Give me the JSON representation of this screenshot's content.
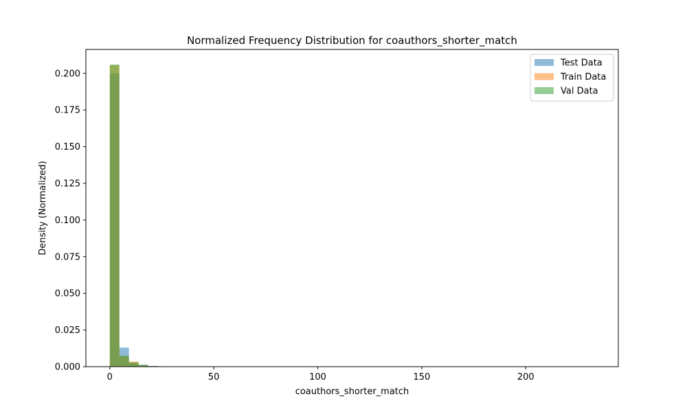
{
  "chart_data": {
    "type": "bar",
    "title": "Normalized Frequency Distribution for coauthors_shorter_match",
    "xlabel": "coauthors_shorter_match",
    "ylabel": "Density (Normalized)",
    "xlim": [
      -11.5,
      244.5
    ],
    "ylim": [
      0,
      0.2163
    ],
    "xticks": [
      0,
      50,
      100,
      150,
      200
    ],
    "yticks": [
      0.0,
      0.025,
      0.05,
      0.075,
      0.1,
      0.125,
      0.15,
      0.175,
      0.2
    ],
    "ytick_labels": [
      "0.000",
      "0.025",
      "0.050",
      "0.075",
      "0.100",
      "0.125",
      "0.150",
      "0.175",
      "0.200"
    ],
    "bin_edges": [
      0,
      4.6,
      9.2,
      13.8,
      18.4,
      23.0,
      27.6
    ],
    "legend_position": "top-right",
    "grid": false,
    "series": [
      {
        "name": "Test Data",
        "color": "#1f77b4",
        "alpha": 0.5,
        "values": [
          0.2,
          0.013,
          0.0025,
          0.0013,
          0.0005,
          0.0002
        ]
      },
      {
        "name": "Train Data",
        "color": "#ff7f0e",
        "alpha": 0.5,
        "values": [
          0.2055,
          0.007,
          0.0035,
          0.001,
          0.0004,
          0.0002
        ]
      },
      {
        "name": "Val Data",
        "color": "#2ca02c",
        "alpha": 0.5,
        "values": [
          0.206,
          0.0075,
          0.003,
          0.0012,
          0.0004,
          0.0003
        ]
      }
    ]
  }
}
